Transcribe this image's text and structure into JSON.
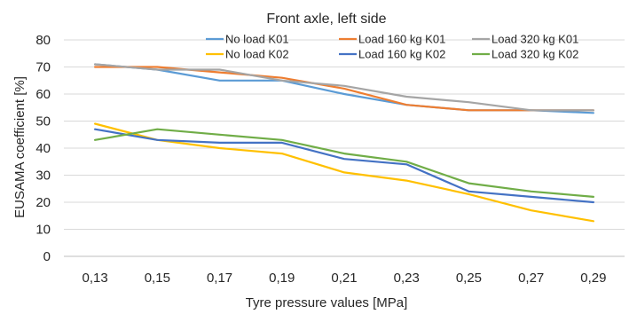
{
  "chart_data": {
    "type": "line",
    "title": "Front axle, left side",
    "xlabel": "Tyre pressure values [MPa]",
    "ylabel": "EUSAMA coefficient [%]",
    "categories": [
      "0,13",
      "0,15",
      "0,17",
      "0,19",
      "0,21",
      "0,23",
      "0,25",
      "0,27",
      "0,29"
    ],
    "ylim": [
      0,
      80
    ],
    "yticks": [
      "0",
      "10",
      "20",
      "30",
      "40",
      "50",
      "60",
      "70",
      "80"
    ],
    "grid": "horizontal",
    "legend_position": "top",
    "series": [
      {
        "name": "No load K01",
        "color": "#5b9bd5",
        "values": [
          71,
          69,
          65,
          65,
          60,
          56,
          54,
          54,
          53
        ]
      },
      {
        "name": "Load 160 kg K01",
        "color": "#ed7d31",
        "values": [
          70,
          70,
          68,
          66,
          62,
          56,
          54,
          54,
          54
        ]
      },
      {
        "name": "Load 320 kg K01",
        "color": "#a5a5a5",
        "values": [
          71,
          69,
          69,
          65,
          63,
          59,
          57,
          54,
          54
        ]
      },
      {
        "name": "No load K02",
        "color": "#ffc000",
        "values": [
          49,
          43,
          40,
          38,
          31,
          28,
          23,
          17,
          13
        ]
      },
      {
        "name": "Load 160 kg K02",
        "color": "#4472c4",
        "values": [
          47,
          43,
          42,
          42,
          36,
          34,
          24,
          22,
          20
        ]
      },
      {
        "name": "Load 320 kg K02",
        "color": "#70ad47",
        "values": [
          43,
          47,
          45,
          43,
          38,
          35,
          27,
          24,
          22
        ]
      }
    ]
  }
}
